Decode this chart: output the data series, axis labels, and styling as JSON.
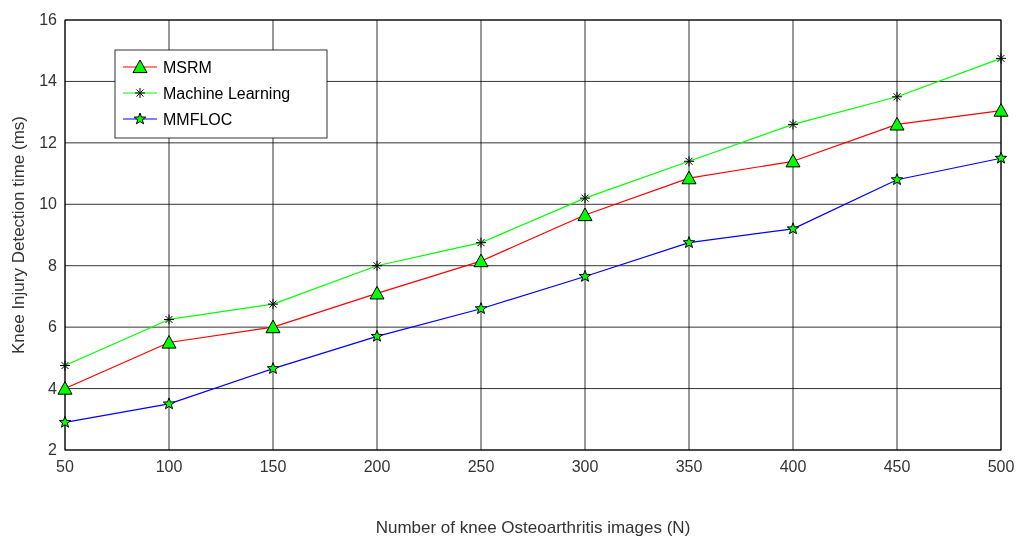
{
  "chart_data": {
    "type": "line",
    "xlabel": "Number of knee Osteoarthritis images (N)",
    "ylabel": "Knee Injury Detection time (ms)",
    "x": [
      50,
      100,
      150,
      200,
      250,
      300,
      350,
      400,
      450,
      500
    ],
    "series": [
      {
        "name": "MSRM",
        "color": "#ff0000",
        "marker": "triangle",
        "values": [
          4.0,
          5.5,
          6.0,
          7.1,
          8.15,
          9.65,
          10.85,
          11.4,
          12.6,
          13.05
        ]
      },
      {
        "name": "Machine Learning",
        "color": "#00ff00",
        "marker": "cross",
        "values": [
          4.75,
          6.25,
          6.75,
          8.0,
          8.75,
          10.2,
          11.4,
          12.6,
          13.5,
          14.75
        ]
      },
      {
        "name": "MMFLOC",
        "color": "#0000ff",
        "marker": "star",
        "values": [
          2.9,
          3.5,
          4.65,
          5.7,
          6.6,
          7.65,
          8.75,
          9.2,
          10.8,
          11.5
        ]
      }
    ],
    "xlim": [
      50,
      500
    ],
    "xticks": [
      50,
      100,
      150,
      200,
      250,
      300,
      350,
      400,
      450,
      500
    ],
    "ylim": [
      2,
      16
    ],
    "yticks": [
      2,
      4,
      6,
      8,
      10,
      12,
      14,
      16
    ],
    "grid": true,
    "legend": "top left",
    "line_style": "solid"
  }
}
